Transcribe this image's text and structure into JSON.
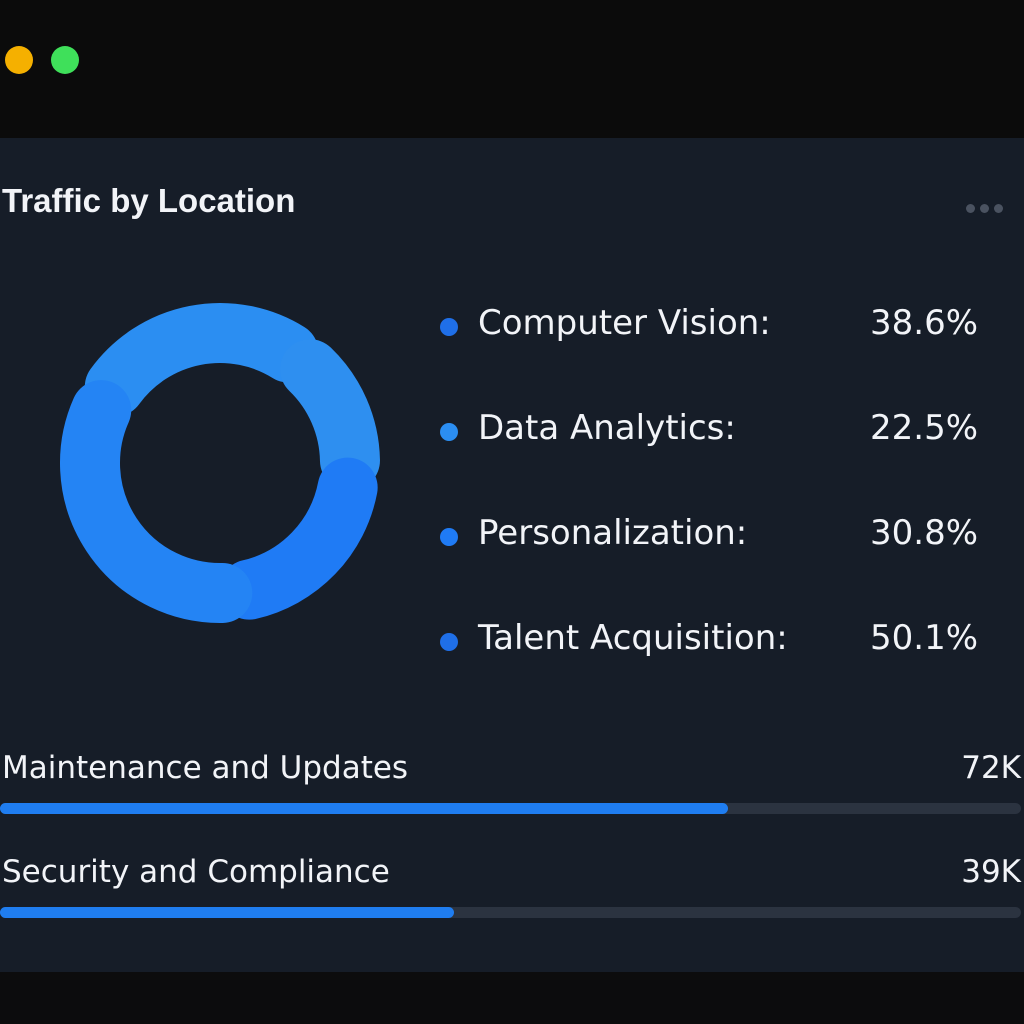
{
  "window": {
    "lights": [
      {
        "name": "minimize",
        "color": "#f5b000"
      },
      {
        "name": "maximize",
        "color": "#3fe05a"
      }
    ]
  },
  "card": {
    "title": "Traffic by Location",
    "more_icon": "ellipsis-icon"
  },
  "chart_data": {
    "type": "pie",
    "variant": "donut",
    "categories": [
      "Computer Vision",
      "Data Analytics",
      "Personalization",
      "Talent Acquisition"
    ],
    "values": [
      38.6,
      22.5,
      30.8,
      50.1
    ],
    "colors": [
      "#2b8ef2",
      "#2e8ff0",
      "#1f7bf5",
      "#2484f4"
    ]
  },
  "legend": [
    {
      "label": "Computer Vision:",
      "value": "38.6%",
      "color": "#1f6fe8"
    },
    {
      "label": "Data Analytics:",
      "value": "22.5%",
      "color": "#2b8ef2"
    },
    {
      "label": "Personalization:",
      "value": "30.8%",
      "color": "#1f7bf5"
    },
    {
      "label": "Talent Acquisition:",
      "value": "50.1%",
      "color": "#1f6fe8"
    }
  ],
  "bars": [
    {
      "label": "Maintenance and Updates",
      "value": "72K",
      "progress": 0.713
    },
    {
      "label": "Security and Compliance",
      "value": "39K",
      "progress": 0.445
    }
  ]
}
